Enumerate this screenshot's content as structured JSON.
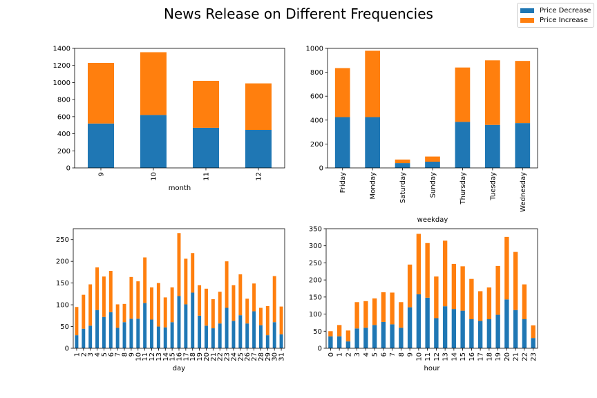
{
  "figure": {
    "title": "News Release on Different Frequencies"
  },
  "legend": {
    "entries": [
      {
        "label": "Price Decrease",
        "color": "#1f77b4"
      },
      {
        "label": "Price Increase",
        "color": "#ff7f0e"
      }
    ]
  },
  "chart_data": [
    {
      "type": "bar",
      "stacked": true,
      "xlabel": "month",
      "categories": [
        "9",
        "10",
        "11",
        "12"
      ],
      "ylim": [
        0,
        1400
      ],
      "yticks": [
        0,
        200,
        400,
        600,
        800,
        1000,
        1200,
        1400
      ],
      "series": [
        {
          "name": "Price Decrease",
          "values": [
            520,
            620,
            470,
            445
          ]
        },
        {
          "name": "Price Increase",
          "values": [
            710,
            735,
            550,
            545
          ]
        }
      ]
    },
    {
      "type": "bar",
      "stacked": true,
      "xlabel": "weekday",
      "categories": [
        "Friday",
        "Monday",
        "Saturday",
        "Sunday",
        "Thursday",
        "Tuesday",
        "Wednesday"
      ],
      "ylim": [
        0,
        1000
      ],
      "yticks": [
        0,
        200,
        400,
        600,
        800,
        1000
      ],
      "series": [
        {
          "name": "Price Decrease",
          "values": [
            425,
            425,
            40,
            52,
            385,
            360,
            375
          ]
        },
        {
          "name": "Price Increase",
          "values": [
            410,
            555,
            30,
            43,
            455,
            540,
            520
          ]
        }
      ]
    },
    {
      "type": "bar",
      "stacked": true,
      "xlabel": "day",
      "categories": [
        "1",
        "2",
        "3",
        "4",
        "5",
        "6",
        "7",
        "8",
        "9",
        "10",
        "11",
        "12",
        "13",
        "14",
        "15",
        "16",
        "17",
        "18",
        "19",
        "20",
        "21",
        "22",
        "23",
        "24",
        "25",
        "26",
        "27",
        "28",
        "29",
        "30",
        "31"
      ],
      "ylim": [
        0,
        275
      ],
      "yticks": [
        0,
        50,
        100,
        150,
        200,
        250
      ],
      "series": [
        {
          "name": "Price Decrease",
          "values": [
            30,
            45,
            52,
            88,
            72,
            83,
            47,
            60,
            68,
            68,
            104,
            66,
            50,
            48,
            60,
            120,
            101,
            128,
            75,
            52,
            46,
            57,
            93,
            63,
            76,
            57,
            85,
            53,
            30,
            60,
            32
          ]
        },
        {
          "name": "Price Increase",
          "values": [
            65,
            78,
            95,
            98,
            93,
            95,
            54,
            42,
            96,
            86,
            105,
            74,
            100,
            69,
            80,
            145,
            105,
            91,
            70,
            85,
            67,
            73,
            107,
            82,
            94,
            57,
            64,
            40,
            67,
            106,
            64
          ]
        }
      ]
    },
    {
      "type": "bar",
      "stacked": true,
      "xlabel": "hour",
      "categories": [
        "0",
        "1",
        "2",
        "3",
        "4",
        "5",
        "6",
        "7",
        "8",
        "9",
        "10",
        "11",
        "12",
        "13",
        "14",
        "15",
        "16",
        "17",
        "18",
        "19",
        "20",
        "21",
        "22",
        "23"
      ],
      "ylim": [
        0,
        350
      ],
      "yticks": [
        0,
        50,
        100,
        150,
        200,
        250,
        300,
        350
      ],
      "series": [
        {
          "name": "Price Decrease",
          "values": [
            35,
            35,
            20,
            58,
            60,
            68,
            77,
            70,
            60,
            120,
            158,
            148,
            88,
            123,
            115,
            110,
            85,
            80,
            85,
            98,
            143,
            112,
            85,
            30
          ]
        },
        {
          "name": "Price Increase",
          "values": [
            15,
            33,
            32,
            77,
            78,
            78,
            87,
            93,
            75,
            125,
            177,
            160,
            122,
            192,
            132,
            130,
            118,
            87,
            93,
            143,
            183,
            170,
            102,
            37
          ]
        }
      ]
    }
  ]
}
